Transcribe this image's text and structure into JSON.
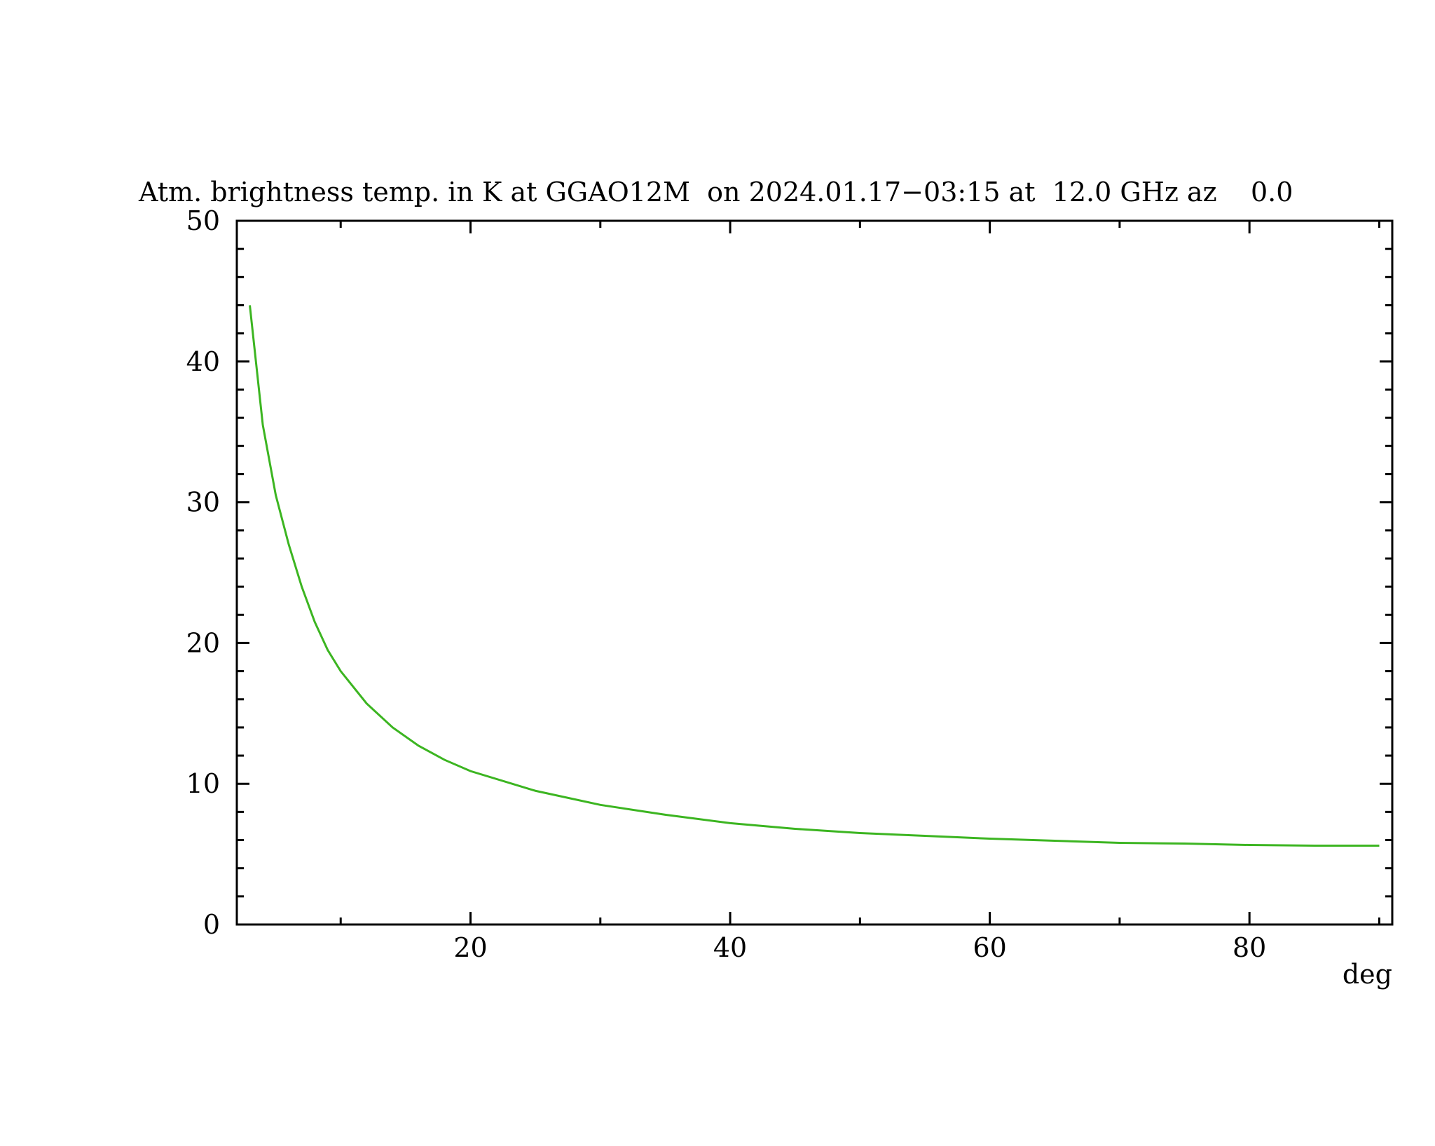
{
  "chart_data": {
    "type": "line",
    "title": "Atm. brightness temp. in K at GGAO12M  on 2024.01.17−03:15 at  12.0 GHz az    0.0",
    "x_label": "deg",
    "x": [
      3,
      4,
      5,
      6,
      7,
      8,
      9,
      10,
      12,
      14,
      16,
      18,
      20,
      25,
      30,
      35,
      40,
      45,
      50,
      55,
      60,
      65,
      70,
      75,
      80,
      85,
      90
    ],
    "series": [
      {
        "color": "#3cb521",
        "values": [
          44,
          35.5,
          30.5,
          27,
          24,
          21.5,
          19.5,
          18,
          15.7,
          14,
          12.7,
          11.7,
          10.9,
          9.5,
          8.5,
          7.8,
          7.2,
          6.8,
          6.5,
          6.3,
          6.1,
          5.95,
          5.8,
          5.75,
          5.65,
          5.6,
          5.6
        ]
      }
    ],
    "xlim": [
      2,
      91
    ],
    "ylim": [
      0,
      50
    ],
    "xticks": [
      20,
      40,
      60,
      80
    ],
    "yticks": [
      0,
      10,
      20,
      30,
      40,
      50
    ],
    "xminorticks": [
      10,
      30,
      50,
      70,
      90
    ],
    "yminorticks": [
      2,
      4,
      6,
      8,
      12,
      14,
      16,
      18,
      22,
      24,
      26,
      28,
      32,
      34,
      36,
      38,
      42,
      44,
      46,
      48
    ],
    "grid": false
  }
}
